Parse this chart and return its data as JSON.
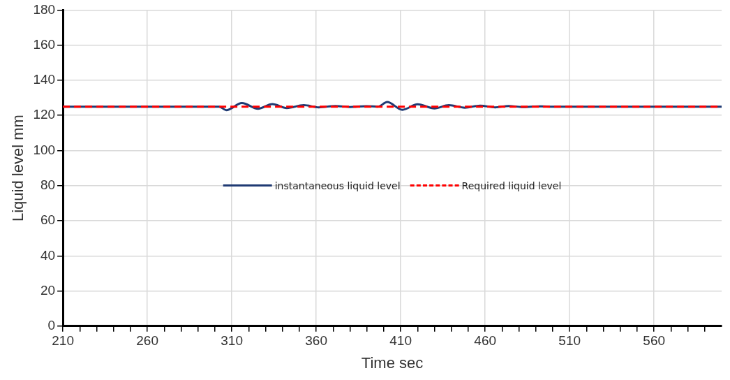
{
  "chart_data": {
    "type": "line",
    "xlabel": "Time sec",
    "ylabel": "Liquid level mm",
    "xlim": [
      210,
      600
    ],
    "xticks": [
      210,
      {
        "value": 220,
        "label": null
      },
      {
        "value": 230,
        "label": null
      },
      {
        "value": 240,
        "label": null
      },
      {
        "value": 250,
        "label": null
      },
      260,
      {
        "value": 270,
        "label": null
      },
      {
        "value": 280,
        "label": null
      },
      {
        "value": 290,
        "label": null
      },
      {
        "value": 300,
        "label": null
      },
      310,
      {
        "value": 320,
        "label": null
      },
      {
        "value": 330,
        "label": null
      },
      {
        "value": 340,
        "label": null
      },
      {
        "value": 350,
        "label": null
      },
      360,
      {
        "value": 370,
        "label": null
      },
      {
        "value": 380,
        "label": null
      },
      {
        "value": 390,
        "label": null
      },
      {
        "value": 400,
        "label": null
      },
      410,
      {
        "value": 420,
        "label": null
      },
      {
        "value": 430,
        "label": null
      },
      {
        "value": 440,
        "label": null
      },
      {
        "value": 450,
        "label": null
      },
      460,
      {
        "value": 470,
        "label": null
      },
      {
        "value": 480,
        "label": null
      },
      {
        "value": 490,
        "label": null
      },
      {
        "value": 500,
        "label": null
      },
      510,
      {
        "value": 520,
        "label": null
      },
      {
        "value": 530,
        "label": null
      },
      {
        "value": 540,
        "label": null
      },
      {
        "value": 550,
        "label": null
      },
      560,
      {
        "value": 570,
        "label": null
      },
      {
        "value": 580,
        "label": null
      },
      {
        "value": 590,
        "label": null
      }
    ],
    "ylim": [
      0,
      180
    ],
    "yticks": [
      0,
      20,
      40,
      60,
      80,
      100,
      120,
      140,
      160,
      180
    ],
    "grid": true,
    "legend": "center",
    "marker": "none",
    "series": [
      {
        "name": "instantaneous liquid level",
        "color": "#1f3a73",
        "line_style": "solid",
        "x": [
          210,
          302.5,
          306.7,
          316,
          325.5,
          334,
          342.6,
          352.6,
          361.5,
          371.5,
          380,
          389.5,
          396.6,
          402,
          411,
          420,
          430,
          438.5,
          448,
          457,
          466,
          474,
          481.5,
          493,
          500,
          600
        ],
        "values": [
          125,
          125,
          123,
          127,
          123.8,
          126.4,
          124.2,
          125.8,
          124.6,
          125.4,
          124.8,
          125.3,
          125,
          127.6,
          123.2,
          126.3,
          124,
          125.8,
          124.4,
          125.6,
          124.6,
          125.4,
          124.8,
          125.2,
          125,
          125
        ]
      },
      {
        "name": "Required liquid level",
        "color": "#ff0000",
        "line_style": "dashed",
        "x": [
          210,
          600
        ],
        "values": [
          125,
          125
        ]
      }
    ]
  }
}
